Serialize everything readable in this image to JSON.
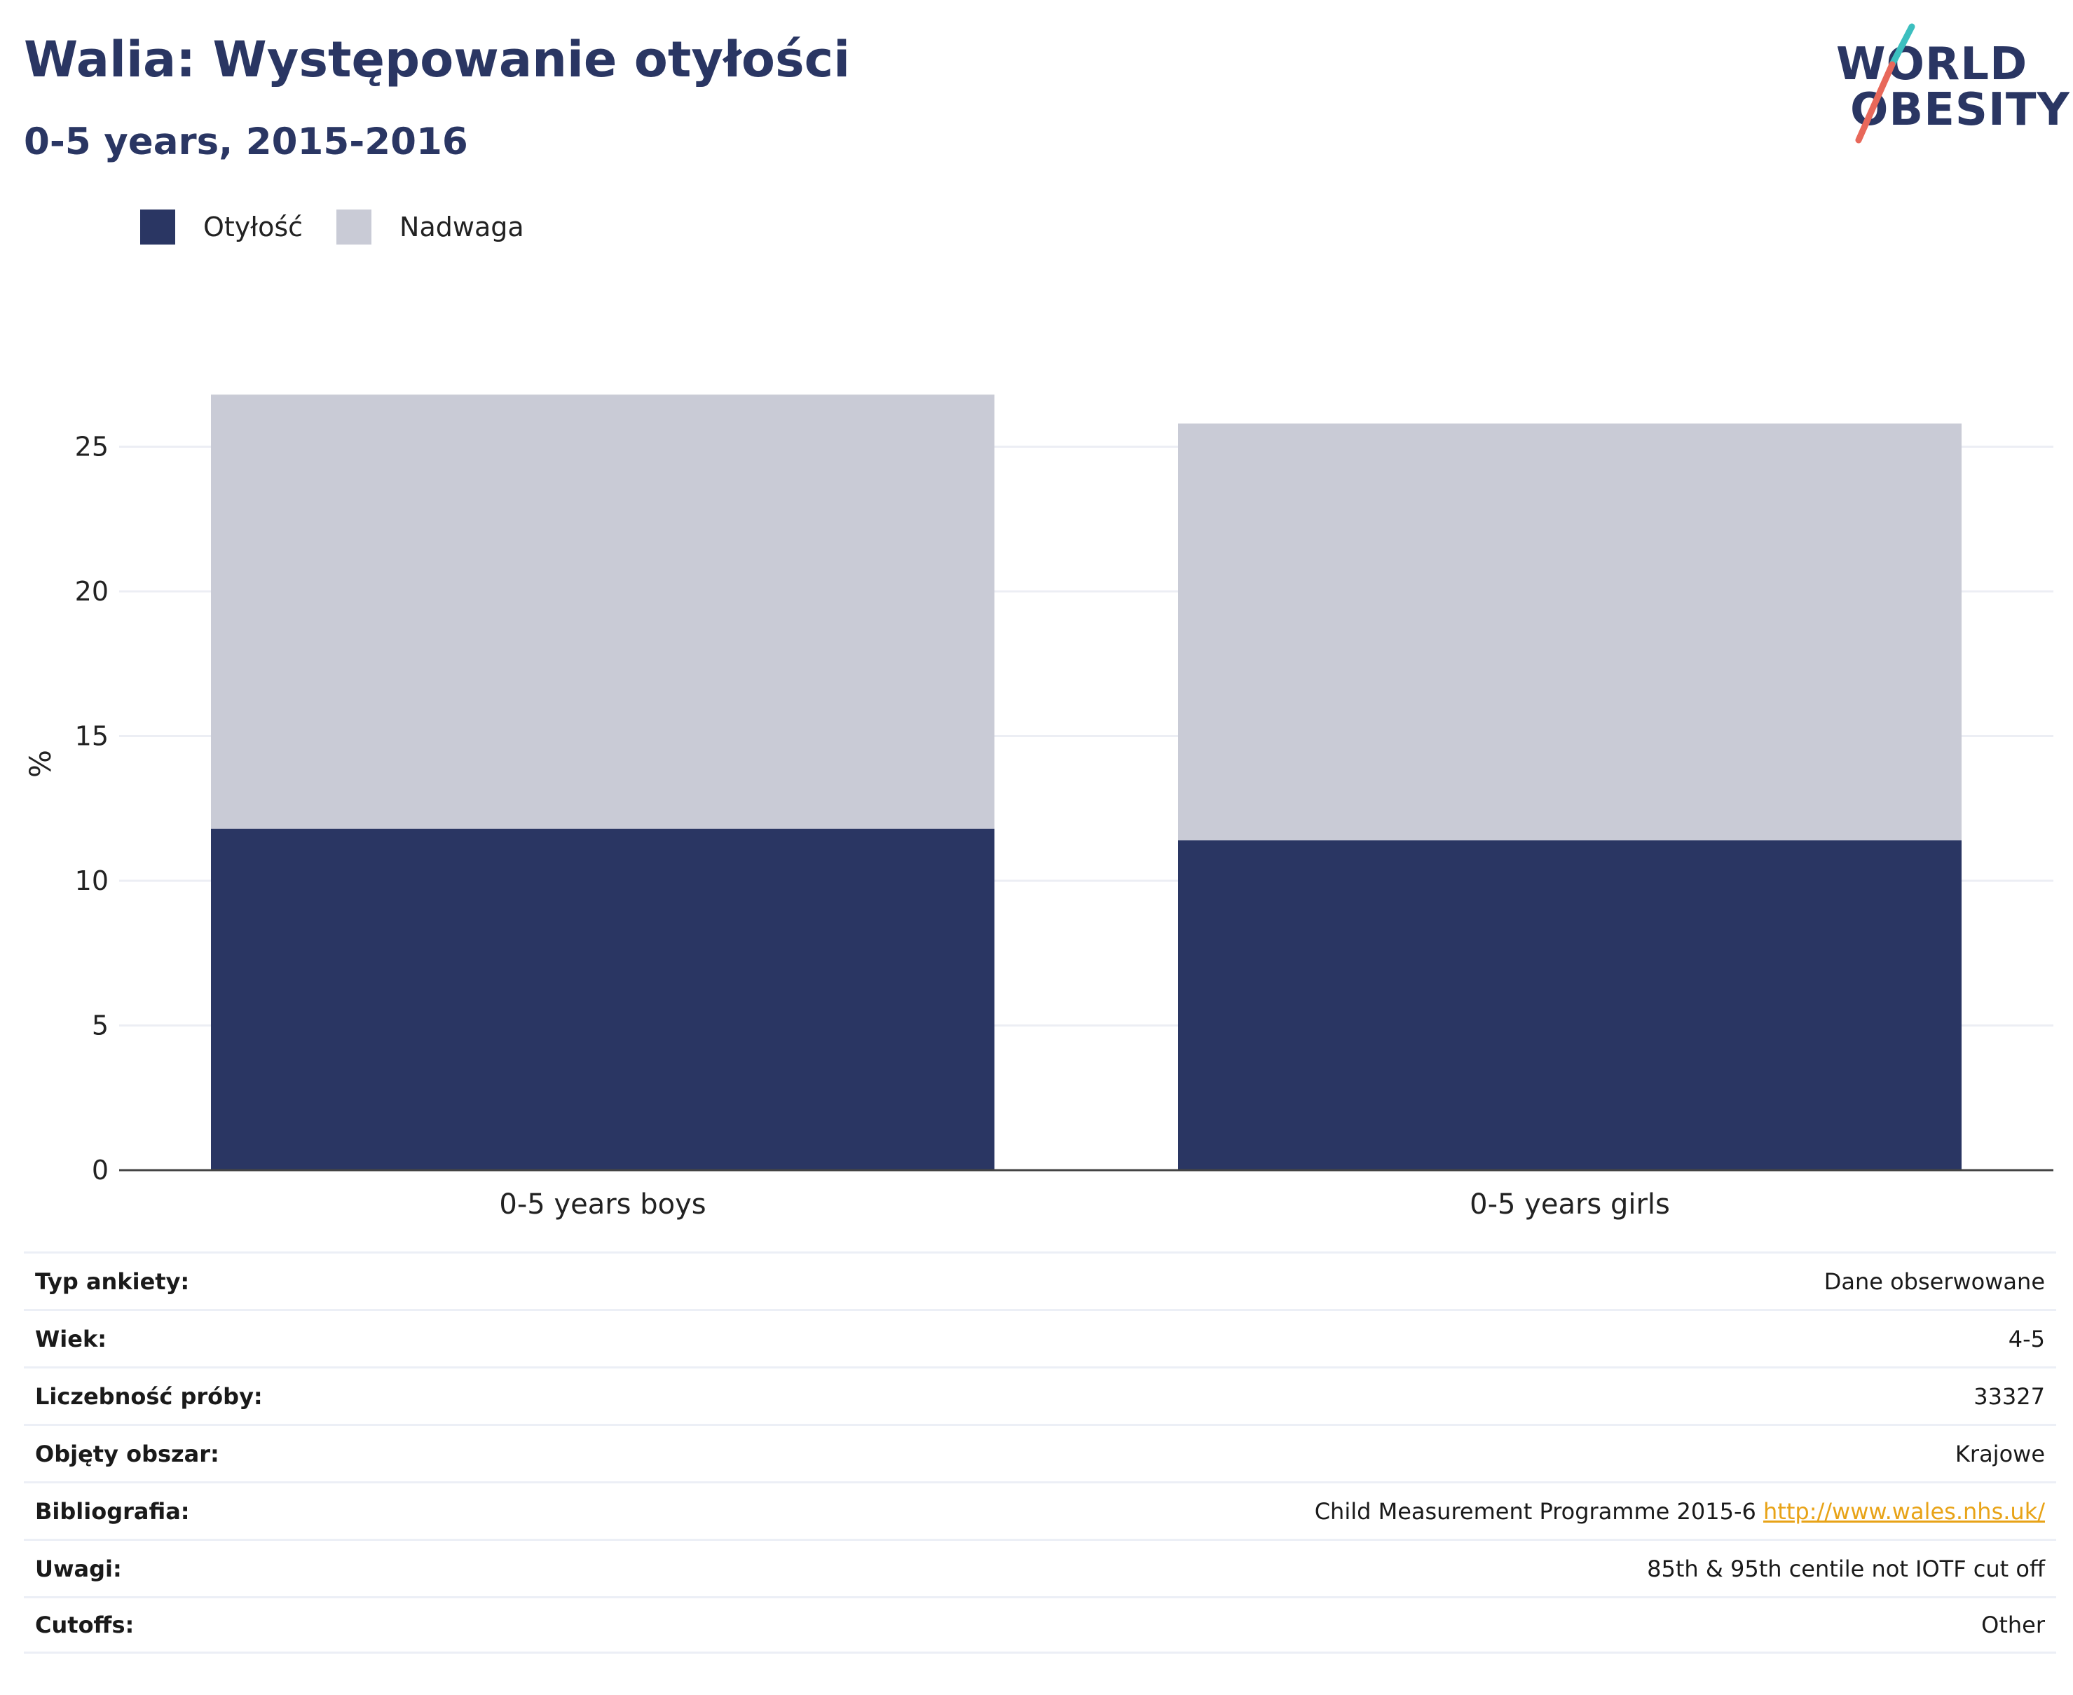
{
  "header": {
    "title": "Walia: Występowanie otyłości",
    "subtitle": "0-5 years, 2015-2016"
  },
  "logo": {
    "line1": "WORLD",
    "line2": "OBESITY",
    "accent_teal": "#3cbfbf",
    "accent_coral": "#e8685a"
  },
  "colors": {
    "obesity": "#2a3663",
    "overweight": "#c9cbd6",
    "grid": "#eceef4",
    "axis": "#444444"
  },
  "chart_data": {
    "type": "bar",
    "stacked": true,
    "categories": [
      "0-5 years boys",
      "0-5 years girls"
    ],
    "series": [
      {
        "name": "Otyłość",
        "values": [
          11.8,
          11.4
        ]
      },
      {
        "name": "Nadwaga",
        "values": [
          15.0,
          14.4
        ]
      }
    ],
    "ylabel": "%",
    "ylim": [
      0,
      27
    ],
    "yticks": [
      0,
      5,
      10,
      15,
      20,
      25
    ],
    "grid": true,
    "legend_position": "top-left"
  },
  "meta": [
    {
      "label": "Typ ankiety:",
      "value": "Dane obserwowane"
    },
    {
      "label": "Wiek:",
      "value": "4-5"
    },
    {
      "label": "Liczebność próby:",
      "value": "33327"
    },
    {
      "label": "Objęty obszar:",
      "value": "Krajowe"
    },
    {
      "label": "Bibliografia:",
      "value": "Child Measurement Programme 2015-6",
      "link": "http://www.wales.nhs.uk/"
    },
    {
      "label": "Uwagi:",
      "value": "85th & 95th centile not IOTF cut off"
    },
    {
      "label": "Cutoffs:",
      "value": "Other"
    }
  ]
}
